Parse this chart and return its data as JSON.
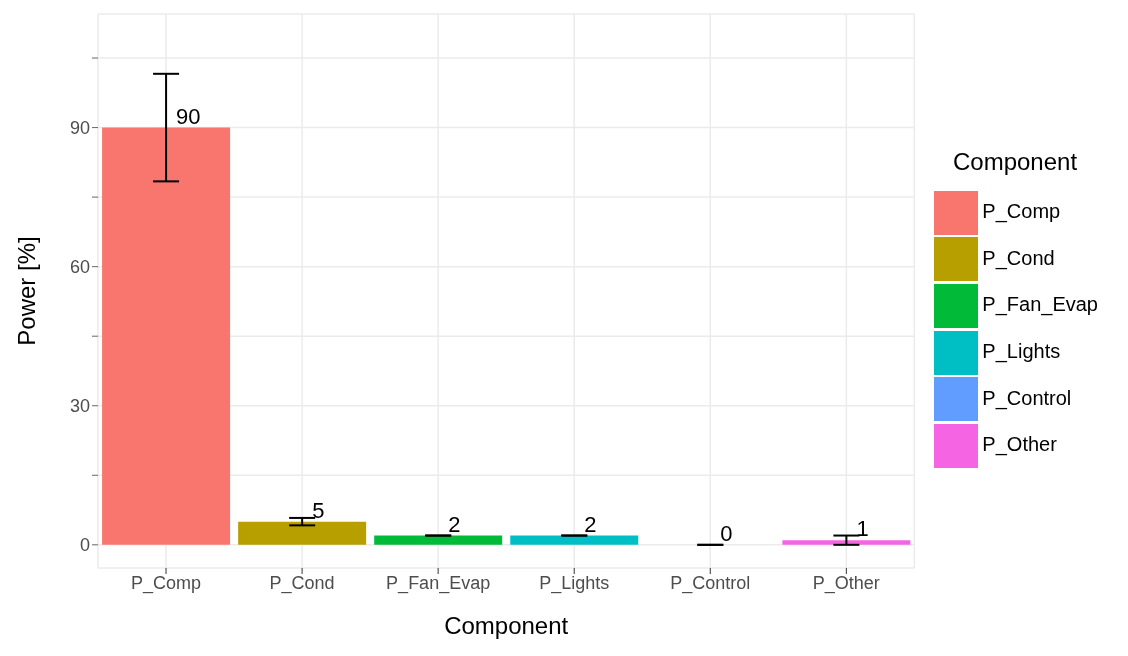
{
  "chart_data": {
    "type": "bar",
    "xlabel": "Component",
    "ylabel": "Power [%]",
    "legend_title": "Component",
    "categories": [
      "P_Comp",
      "P_Cond",
      "P_Fan_Evap",
      "P_Lights",
      "P_Control",
      "P_Other"
    ],
    "series": [
      {
        "name": "P_Comp",
        "color": "#f8766d",
        "values": [
          90,
          null,
          null,
          null,
          null,
          null
        ],
        "errors": [
          11.6,
          null,
          null,
          null,
          null,
          null
        ]
      },
      {
        "name": "P_Cond",
        "color": "#b79f00",
        "values": [
          null,
          5,
          null,
          null,
          null,
          null
        ],
        "errors": [
          null,
          0.8,
          null,
          null,
          null,
          null
        ]
      },
      {
        "name": "P_Fan_Evap",
        "color": "#00ba38",
        "values": [
          null,
          null,
          2,
          null,
          null,
          null
        ],
        "errors": [
          null,
          null,
          0,
          null,
          null,
          null
        ]
      },
      {
        "name": "P_Lights",
        "color": "#00bfc4",
        "values": [
          null,
          null,
          null,
          2,
          null,
          null
        ],
        "errors": [
          null,
          null,
          null,
          0,
          null,
          null
        ]
      },
      {
        "name": "P_Control",
        "color": "#619cff",
        "values": [
          null,
          null,
          null,
          null,
          0,
          null
        ],
        "errors": [
          null,
          null,
          null,
          null,
          0,
          null
        ]
      },
      {
        "name": "P_Other",
        "color": "#f564e3",
        "values": [
          null,
          null,
          null,
          null,
          null,
          1
        ],
        "errors": [
          null,
          null,
          null,
          null,
          null,
          1
        ]
      }
    ],
    "stacked": true,
    "data_labels": true,
    "ylim": [
      -5,
      114.5
    ],
    "yticks": [
      0,
      {
        "value": 15,
        "label": null
      },
      30,
      {
        "value": 45,
        "label": null
      },
      60,
      {
        "value": 75,
        "label": null
      },
      90,
      {
        "value": 105,
        "label": null
      }
    ],
    "grid": true,
    "legend": "right"
  }
}
